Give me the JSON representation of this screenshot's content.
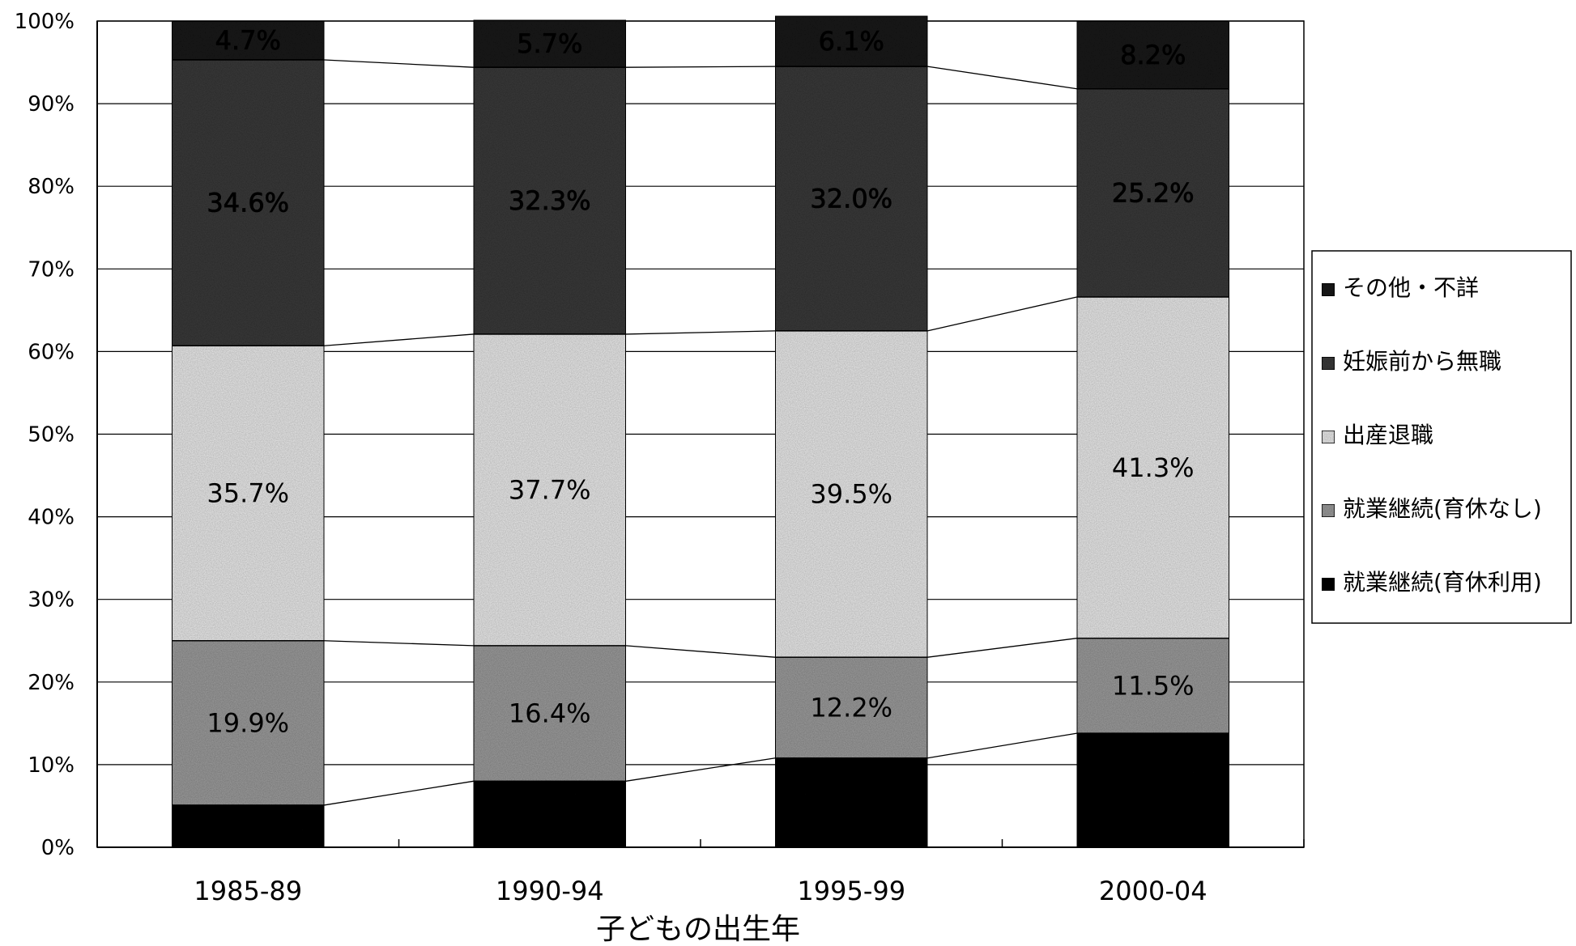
{
  "chart_data": {
    "type": "bar",
    "stacked": true,
    "percent": true,
    "categories": [
      "1985-89",
      "1990-94",
      "1995-99",
      "2000-04"
    ],
    "series": [
      {
        "name": "就業継続(育休利用)",
        "values": [
          5.1,
          8.0,
          10.8,
          13.8
        ],
        "color": "#111111",
        "labels": [
          "5.1%",
          "8.0%",
          "10.8%",
          "13.8%"
        ]
      },
      {
        "name": "就業継続(育休なし)",
        "values": [
          19.9,
          16.4,
          12.2,
          11.5
        ],
        "color": "#9a9a9a",
        "labels": [
          "19.9%",
          "16.4%",
          "12.2%",
          "11.5%"
        ]
      },
      {
        "name": "出産退職",
        "values": [
          35.7,
          37.7,
          39.5,
          41.3
        ],
        "color": "#e6e6e6",
        "labels": [
          "35.7%",
          "37.7%",
          "39.5%",
          "41.3%"
        ]
      },
      {
        "name": "妊娠前から無職",
        "values": [
          34.6,
          32.3,
          32.0,
          25.2
        ],
        "color": "#3a3a3a",
        "labels": [
          "34.6%",
          "32.3%",
          "32.0%",
          "25.2%"
        ]
      },
      {
        "name": "その他・不詳",
        "values": [
          4.7,
          5.7,
          6.1,
          8.2
        ],
        "color": "#1e1e1e",
        "labels": [
          "4.7%",
          "5.7%",
          "6.1%",
          "8.2%"
        ]
      }
    ],
    "legend_order": [
      "その他・不詳",
      "妊娠前から無職",
      "出産退職",
      "就業継続(育休なし)",
      "就業継続(育休利用)"
    ],
    "legend_position": "right",
    "xlabel": "子どもの出生年",
    "ylabel": "",
    "ylim": [
      0,
      100
    ],
    "yticks": [
      "0%",
      "10%",
      "20%",
      "30%",
      "40%",
      "50%",
      "60%",
      "70%",
      "80%",
      "90%",
      "100%"
    ],
    "grid": true
  }
}
